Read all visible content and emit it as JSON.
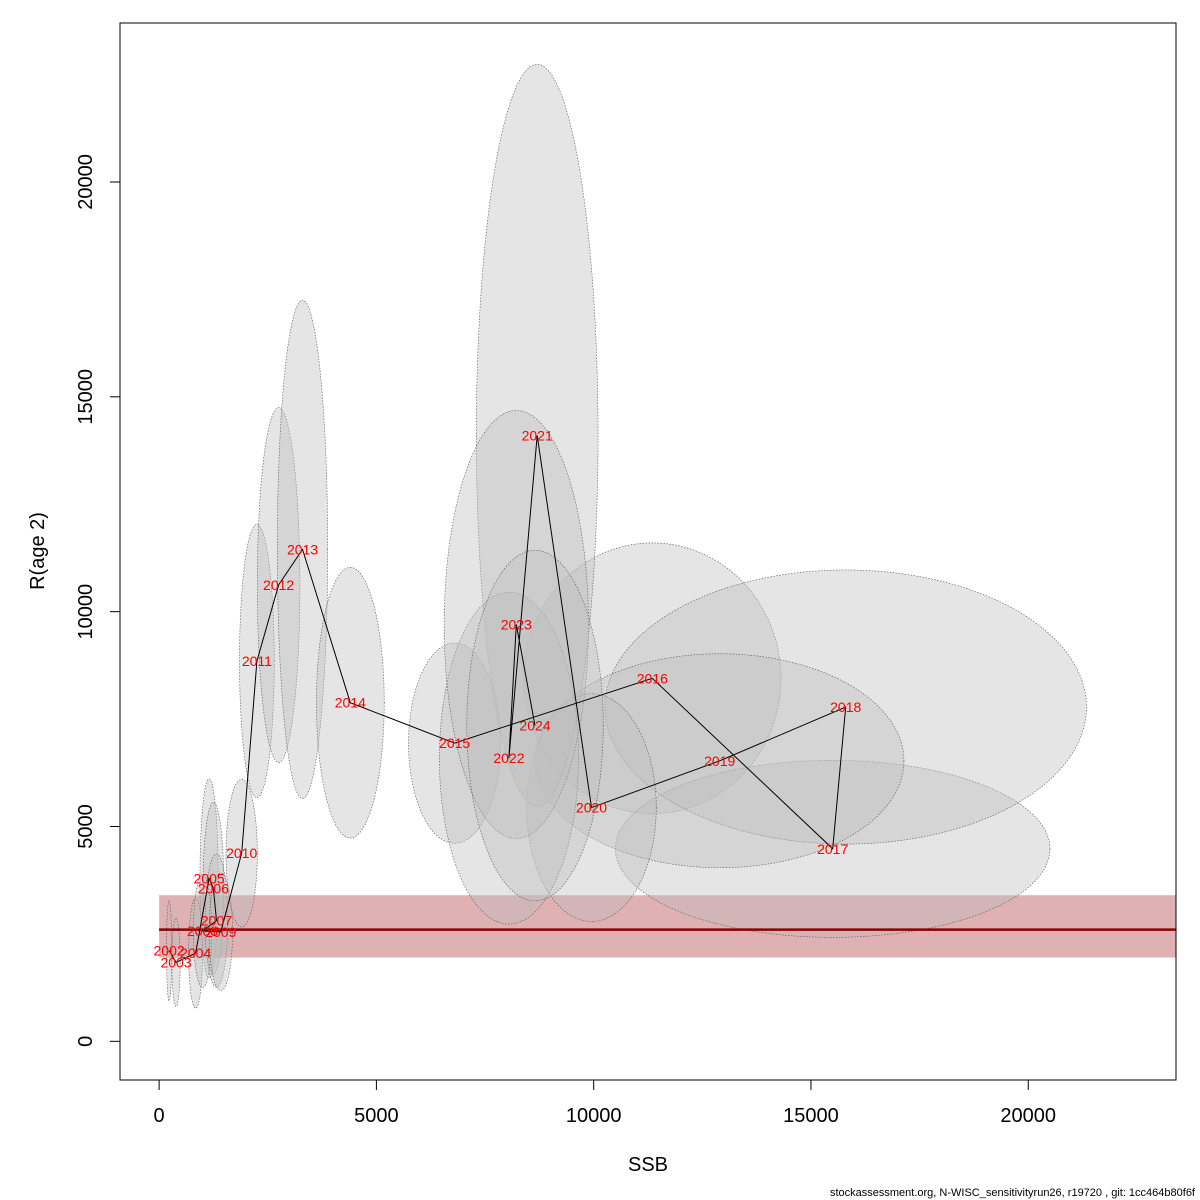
{
  "chart_data": {
    "type": "scatter",
    "title": "",
    "xlabel": "SSB",
    "ylabel": "R(age 2)",
    "xlim": [
      -900,
      23400
    ],
    "ylim": [
      -900,
      23700
    ],
    "x_ticks": [
      0,
      5000,
      10000,
      15000,
      20000
    ],
    "y_ticks": [
      0,
      5000,
      10000,
      15000,
      20000
    ],
    "grid": false,
    "reference_line": {
      "y": 2600,
      "band": [
        1950,
        3400
      ],
      "x_start": 0,
      "line_color": "#8b0000",
      "band_color": "#d9a3a6"
    },
    "ellipse_color": "#bfbfbf",
    "points": [
      {
        "year": "2002",
        "ssb": 230,
        "r": 2110,
        "sx": 60,
        "sy": 1170
      },
      {
        "year": "2003",
        "ssb": 390,
        "r": 1840,
        "sx": 95,
        "sy": 1030
      },
      {
        "year": "2004",
        "ssb": 840,
        "r": 2050,
        "sx": 160,
        "sy": 1280
      },
      {
        "year": "2005",
        "ssb": 1150,
        "r": 3790,
        "sx": 210,
        "sy": 2320
      },
      {
        "year": "2006",
        "ssb": 1250,
        "r": 3560,
        "sx": 240,
        "sy": 2000
      },
      {
        "year": "2007",
        "ssb": 1320,
        "r": 2810,
        "sx": 260,
        "sy": 1550
      },
      {
        "year": "2008",
        "ssb": 1000,
        "r": 2570,
        "sx": 210,
        "sy": 1320
      },
      {
        "year": "2009",
        "ssb": 1420,
        "r": 2550,
        "sx": 270,
        "sy": 1370
      },
      {
        "year": "2010",
        "ssb": 1900,
        "r": 4380,
        "sx": 360,
        "sy": 1720
      },
      {
        "year": "2011",
        "ssb": 2250,
        "r": 8850,
        "sx": 400,
        "sy": 3180
      },
      {
        "year": "2012",
        "ssb": 2750,
        "r": 10620,
        "sx": 490,
        "sy": 4130
      },
      {
        "year": "2013",
        "ssb": 3300,
        "r": 11450,
        "sx": 580,
        "sy": 5800
      },
      {
        "year": "2014",
        "ssb": 4400,
        "r": 7880,
        "sx": 780,
        "sy": 3150
      },
      {
        "year": "2015",
        "ssb": 6800,
        "r": 6940,
        "sx": 1060,
        "sy": 2330
      },
      {
        "year": "2016",
        "ssb": 11350,
        "r": 8450,
        "sx": 2960,
        "sy": 3150
      },
      {
        "year": "2017",
        "ssb": 15500,
        "r": 4480,
        "sx": 5000,
        "sy": 2060
      },
      {
        "year": "2018",
        "ssb": 15800,
        "r": 7780,
        "sx": 5540,
        "sy": 3190
      },
      {
        "year": "2019",
        "ssb": 12900,
        "r": 6530,
        "sx": 4240,
        "sy": 2490
      },
      {
        "year": "2020",
        "ssb": 9950,
        "r": 5440,
        "sx": 1490,
        "sy": 2650
      },
      {
        "year": "2021",
        "ssb": 8700,
        "r": 14100,
        "sx": 1400,
        "sy": 8640
      },
      {
        "year": "2022",
        "ssb": 8050,
        "r": 6590,
        "sx": 1600,
        "sy": 3860
      },
      {
        "year": "2023",
        "ssb": 8220,
        "r": 9700,
        "sx": 1660,
        "sy": 4980
      },
      {
        "year": "2024",
        "ssb": 8650,
        "r": 7350,
        "sx": 1570,
        "sy": 4080
      }
    ]
  },
  "footer": {
    "text": "stockassessment.org, N-WISC_sensitivityrun26, r19720 , git: 1cc464b80f6f"
  }
}
